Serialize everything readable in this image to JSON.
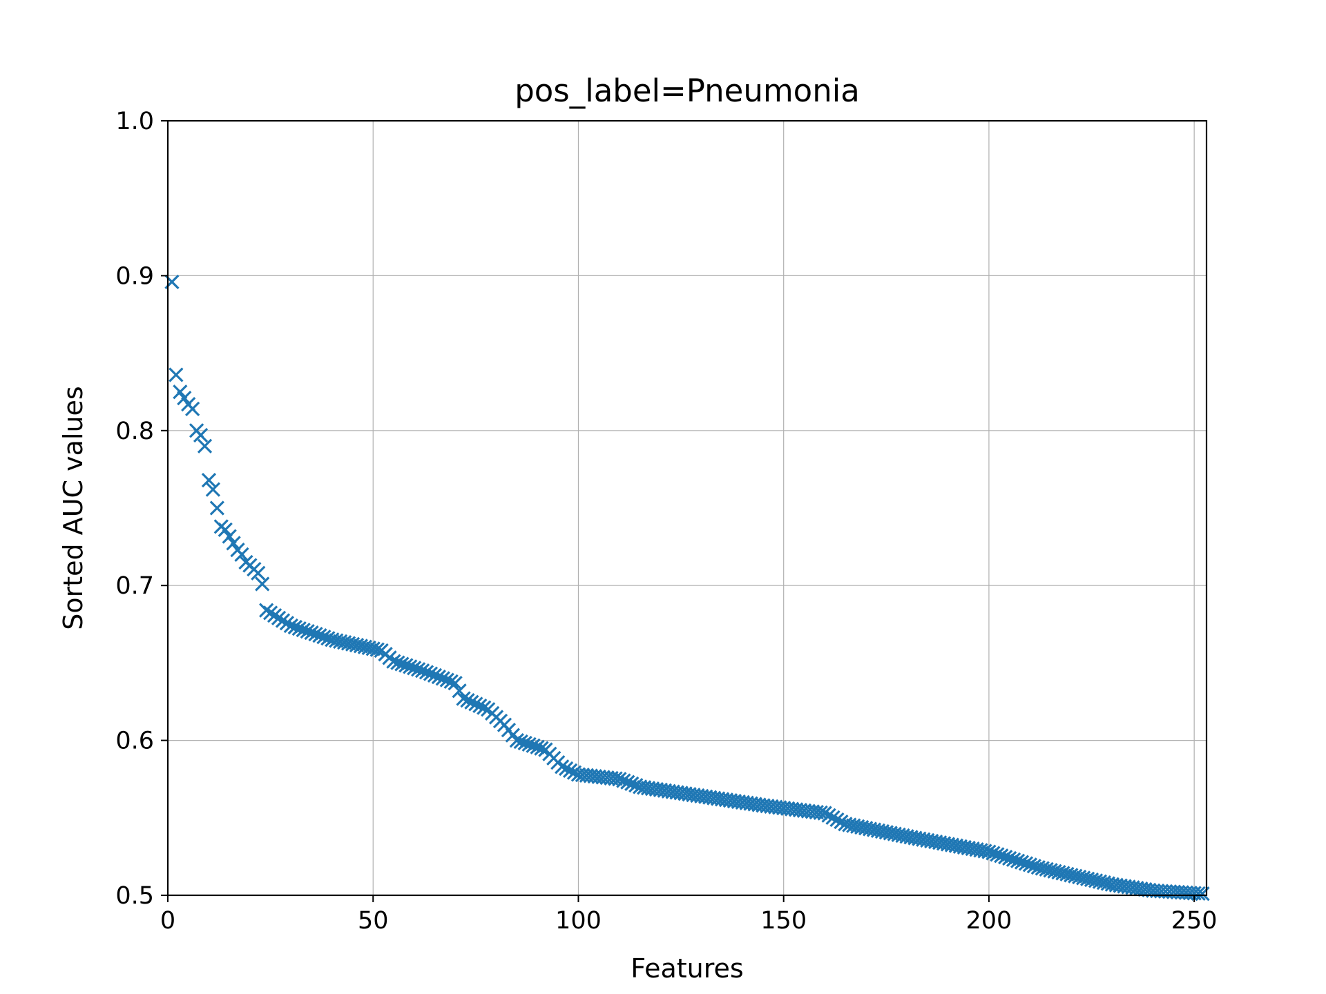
{
  "chart_data": {
    "type": "scatter",
    "title": "pos_label=Pneumonia",
    "xlabel": "Features",
    "ylabel": "Sorted AUC values",
    "xlim": [
      0,
      253
    ],
    "ylim": [
      0.5,
      1.0
    ],
    "xticks": [
      0,
      50,
      100,
      150,
      200,
      250
    ],
    "yticks": [
      0.5,
      0.6,
      0.7,
      0.8,
      0.9,
      1.0
    ],
    "xtick_labels": [
      "0",
      "50",
      "100",
      "150",
      "200",
      "250"
    ],
    "ytick_labels": [
      "0.5",
      "0.6",
      "0.7",
      "0.8",
      "0.9",
      "1.0"
    ],
    "grid": true,
    "marker": "x",
    "color": "#1f77b4",
    "knots": [
      [
        1,
        0.896
      ],
      [
        2,
        0.836
      ],
      [
        3,
        0.825
      ],
      [
        5,
        0.817
      ],
      [
        6,
        0.814
      ],
      [
        7,
        0.8
      ],
      [
        8,
        0.797
      ],
      [
        9,
        0.79
      ],
      [
        10,
        0.768
      ],
      [
        11,
        0.762
      ],
      [
        12,
        0.75
      ],
      [
        13,
        0.738
      ],
      [
        14,
        0.736
      ],
      [
        17,
        0.723
      ],
      [
        18,
        0.72
      ],
      [
        19,
        0.715
      ],
      [
        20,
        0.713
      ],
      [
        22,
        0.708
      ],
      [
        23,
        0.701
      ],
      [
        24,
        0.684
      ],
      [
        30,
        0.674
      ],
      [
        40,
        0.665
      ],
      [
        52,
        0.658
      ],
      [
        55,
        0.651
      ],
      [
        62,
        0.645
      ],
      [
        70,
        0.637
      ],
      [
        72,
        0.627
      ],
      [
        78,
        0.62
      ],
      [
        82,
        0.61
      ],
      [
        85,
        0.6
      ],
      [
        92,
        0.594
      ],
      [
        96,
        0.583
      ],
      [
        100,
        0.578
      ],
      [
        110,
        0.575
      ],
      [
        115,
        0.57
      ],
      [
        130,
        0.564
      ],
      [
        145,
        0.558
      ],
      [
        160,
        0.553
      ],
      [
        165,
        0.546
      ],
      [
        180,
        0.538
      ],
      [
        200,
        0.528
      ],
      [
        212,
        0.518
      ],
      [
        220,
        0.513
      ],
      [
        230,
        0.507
      ],
      [
        240,
        0.503
      ],
      [
        252,
        0.501
      ]
    ]
  }
}
